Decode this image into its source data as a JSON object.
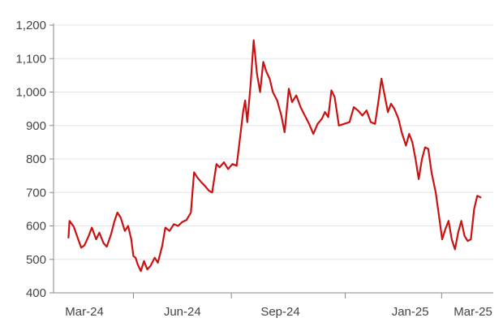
{
  "chart_data": {
    "type": "line",
    "title": "",
    "xlabel": "",
    "ylabel": "",
    "ylim": [
      400,
      1200
    ],
    "y_ticks": [
      "400",
      "500",
      "600",
      "700",
      "800",
      "900",
      "1,000",
      "1,100",
      "1,200"
    ],
    "x_ticks": [
      {
        "label": "Mar-24",
        "date": "2024-03-01"
      },
      {
        "label": "Jun-24",
        "date": "2024-06-01"
      },
      {
        "label": "Sep-24",
        "date": "2024-09-01"
      },
      {
        "label": "Jan-25",
        "date": "2025-01-01"
      },
      {
        "label": "Mar-25",
        "date": "2025-03-01"
      }
    ],
    "grid": "horizontal",
    "legend": "none",
    "line_color": "#cc1111",
    "series": [
      {
        "name": "",
        "points": [
          [
            "2024-02-15",
            565
          ],
          [
            "2024-02-16",
            615
          ],
          [
            "2024-02-20",
            598
          ],
          [
            "2024-02-23",
            570
          ],
          [
            "2024-02-27",
            535
          ],
          [
            "2024-03-01",
            542
          ],
          [
            "2024-03-05",
            570
          ],
          [
            "2024-03-08",
            595
          ],
          [
            "2024-03-12",
            560
          ],
          [
            "2024-03-15",
            580
          ],
          [
            "2024-03-19",
            548
          ],
          [
            "2024-03-22",
            538
          ],
          [
            "2024-03-26",
            575
          ],
          [
            "2024-03-29",
            612
          ],
          [
            "2024-04-01",
            640
          ],
          [
            "2024-04-04",
            625
          ],
          [
            "2024-04-08",
            585
          ],
          [
            "2024-04-11",
            600
          ],
          [
            "2024-04-14",
            560
          ],
          [
            "2024-04-16",
            510
          ],
          [
            "2024-04-18",
            505
          ],
          [
            "2024-04-20",
            485
          ],
          [
            "2024-04-23",
            465
          ],
          [
            "2024-04-26",
            495
          ],
          [
            "2024-04-29",
            470
          ],
          [
            "2024-05-02",
            480
          ],
          [
            "2024-05-06",
            505
          ],
          [
            "2024-05-09",
            490
          ],
          [
            "2024-05-13",
            540
          ],
          [
            "2024-05-16",
            595
          ],
          [
            "2024-05-20",
            585
          ],
          [
            "2024-05-24",
            605
          ],
          [
            "2024-05-28",
            600
          ],
          [
            "2024-06-01",
            612
          ],
          [
            "2024-06-05",
            618
          ],
          [
            "2024-06-09",
            640
          ],
          [
            "2024-06-12",
            760
          ],
          [
            "2024-06-15",
            745
          ],
          [
            "2024-06-19",
            730
          ],
          [
            "2024-06-22",
            720
          ],
          [
            "2024-06-26",
            705
          ],
          [
            "2024-06-29",
            700
          ],
          [
            "2024-07-03",
            785
          ],
          [
            "2024-07-06",
            775
          ],
          [
            "2024-07-10",
            790
          ],
          [
            "2024-07-14",
            770
          ],
          [
            "2024-07-18",
            785
          ],
          [
            "2024-07-22",
            780
          ],
          [
            "2024-07-25",
            860
          ],
          [
            "2024-07-28",
            940
          ],
          [
            "2024-07-30",
            975
          ],
          [
            "2024-08-01",
            910
          ],
          [
            "2024-08-04",
            1020
          ],
          [
            "2024-08-07",
            1155
          ],
          [
            "2024-08-10",
            1055
          ],
          [
            "2024-08-13",
            1000
          ],
          [
            "2024-08-16",
            1090
          ],
          [
            "2024-08-19",
            1060
          ],
          [
            "2024-08-22",
            1040
          ],
          [
            "2024-08-25",
            1000
          ],
          [
            "2024-08-29",
            975
          ],
          [
            "2024-09-02",
            930
          ],
          [
            "2024-09-05",
            880
          ],
          [
            "2024-09-09",
            1010
          ],
          [
            "2024-09-12",
            970
          ],
          [
            "2024-09-16",
            990
          ],
          [
            "2024-09-20",
            955
          ],
          [
            "2024-09-24",
            930
          ],
          [
            "2024-09-28",
            905
          ],
          [
            "2024-10-02",
            875
          ],
          [
            "2024-10-06",
            905
          ],
          [
            "2024-10-10",
            920
          ],
          [
            "2024-10-13",
            940
          ],
          [
            "2024-10-16",
            925
          ],
          [
            "2024-10-19",
            1005
          ],
          [
            "2024-10-22",
            985
          ],
          [
            "2024-10-26",
            900
          ],
          [
            "2024-10-31",
            905
          ],
          [
            "2024-11-05",
            910
          ],
          [
            "2024-11-09",
            955
          ],
          [
            "2024-11-13",
            945
          ],
          [
            "2024-11-17",
            930
          ],
          [
            "2024-11-21",
            945
          ],
          [
            "2024-11-25",
            910
          ],
          [
            "2024-11-29",
            905
          ],
          [
            "2024-12-02",
            970
          ],
          [
            "2024-12-05",
            1040
          ],
          [
            "2024-12-08",
            990
          ],
          [
            "2024-12-11",
            940
          ],
          [
            "2024-12-14",
            965
          ],
          [
            "2024-12-17",
            950
          ],
          [
            "2024-12-21",
            920
          ],
          [
            "2024-12-24",
            880
          ],
          [
            "2024-12-28",
            840
          ],
          [
            "2024-12-31",
            875
          ],
          [
            "2025-01-03",
            850
          ],
          [
            "2025-01-06",
            800
          ],
          [
            "2025-01-09",
            740
          ],
          [
            "2025-01-12",
            800
          ],
          [
            "2025-01-15",
            835
          ],
          [
            "2025-01-18",
            830
          ],
          [
            "2025-01-21",
            760
          ],
          [
            "2025-01-25",
            700
          ],
          [
            "2025-01-28",
            630
          ],
          [
            "2025-01-31",
            560
          ],
          [
            "2025-02-03",
            590
          ],
          [
            "2025-02-06",
            615
          ],
          [
            "2025-02-09",
            560
          ],
          [
            "2025-02-12",
            530
          ],
          [
            "2025-02-15",
            580
          ],
          [
            "2025-02-18",
            615
          ],
          [
            "2025-02-21",
            570
          ],
          [
            "2025-02-24",
            555
          ],
          [
            "2025-02-27",
            560
          ],
          [
            "2025-03-02",
            650
          ],
          [
            "2025-03-05",
            690
          ],
          [
            "2025-03-08",
            685
          ]
        ]
      }
    ]
  }
}
